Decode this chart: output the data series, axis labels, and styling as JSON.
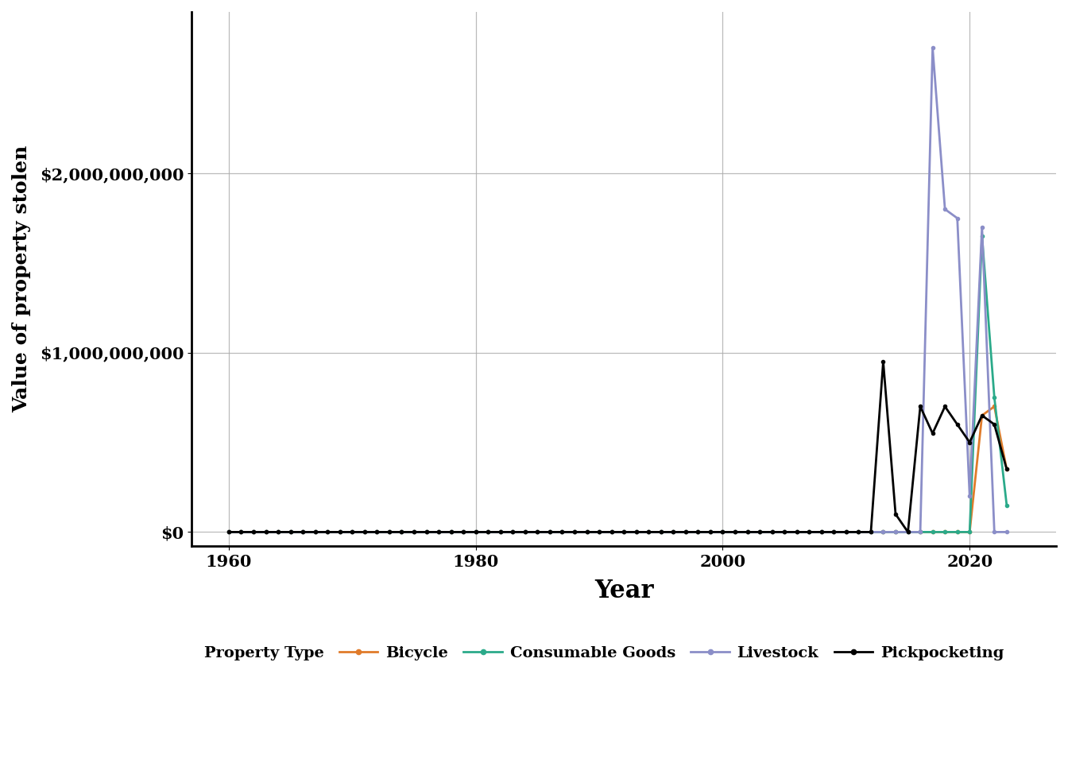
{
  "xlabel": "Year",
  "ylabel": "Value of property stolen",
  "xlim": [
    1957,
    2027
  ],
  "ylim": [
    -80000000,
    2900000000
  ],
  "yticks": [
    0,
    1000000000,
    2000000000
  ],
  "ytick_labels": [
    "$0",
    "$1,000,000,000",
    "$2,000,000,000"
  ],
  "xticks": [
    1960,
    1980,
    2000,
    2020
  ],
  "legend_title": "Property Type",
  "series": {
    "Bicycle": {
      "color": "#E07B2A",
      "years": [
        1960,
        1961,
        1962,
        1963,
        1964,
        1965,
        1966,
        1967,
        1968,
        1969,
        1970,
        1971,
        1972,
        1973,
        1974,
        1975,
        1976,
        1977,
        1978,
        1979,
        1980,
        1981,
        1982,
        1983,
        1984,
        1985,
        1986,
        1987,
        1988,
        1989,
        1990,
        1991,
        1992,
        1993,
        1994,
        1995,
        1996,
        1997,
        1998,
        1999,
        2000,
        2001,
        2002,
        2003,
        2004,
        2005,
        2006,
        2007,
        2008,
        2009,
        2010,
        2011,
        2012,
        2013,
        2014,
        2015,
        2016,
        2017,
        2018,
        2019,
        2020,
        2021,
        2022,
        2023
      ],
      "values": [
        0,
        0,
        0,
        0,
        0,
        0,
        0,
        0,
        0,
        0,
        0,
        0,
        0,
        0,
        0,
        0,
        0,
        0,
        0,
        0,
        0,
        0,
        0,
        0,
        0,
        0,
        0,
        0,
        0,
        0,
        0,
        0,
        0,
        0,
        0,
        0,
        0,
        0,
        0,
        0,
        0,
        0,
        0,
        0,
        0,
        0,
        0,
        0,
        0,
        0,
        0,
        0,
        0,
        0,
        0,
        0,
        0,
        0,
        0,
        0,
        0,
        650000000,
        700000000,
        350000000
      ]
    },
    "Consumable Goods": {
      "color": "#2BAA8A",
      "years": [
        1960,
        1961,
        1962,
        1963,
        1964,
        1965,
        1966,
        1967,
        1968,
        1969,
        1970,
        1971,
        1972,
        1973,
        1974,
        1975,
        1976,
        1977,
        1978,
        1979,
        1980,
        1981,
        1982,
        1983,
        1984,
        1985,
        1986,
        1987,
        1988,
        1989,
        1990,
        1991,
        1992,
        1993,
        1994,
        1995,
        1996,
        1997,
        1998,
        1999,
        2000,
        2001,
        2002,
        2003,
        2004,
        2005,
        2006,
        2007,
        2008,
        2009,
        2010,
        2011,
        2012,
        2013,
        2014,
        2015,
        2016,
        2017,
        2018,
        2019,
        2020,
        2021,
        2022,
        2023
      ],
      "values": [
        0,
        0,
        0,
        0,
        0,
        0,
        0,
        0,
        0,
        0,
        0,
        0,
        0,
        0,
        0,
        0,
        0,
        0,
        0,
        0,
        0,
        0,
        0,
        0,
        0,
        0,
        0,
        0,
        0,
        0,
        0,
        0,
        0,
        0,
        0,
        0,
        0,
        0,
        0,
        0,
        0,
        0,
        0,
        0,
        0,
        0,
        0,
        0,
        0,
        0,
        0,
        0,
        0,
        0,
        0,
        0,
        0,
        0,
        0,
        0,
        0,
        1650000000,
        750000000,
        150000000
      ]
    },
    "Livestock": {
      "color": "#8B8EC8",
      "years": [
        1960,
        1961,
        1962,
        1963,
        1964,
        1965,
        1966,
        1967,
        1968,
        1969,
        1970,
        1971,
        1972,
        1973,
        1974,
        1975,
        1976,
        1977,
        1978,
        1979,
        1980,
        1981,
        1982,
        1983,
        1984,
        1985,
        1986,
        1987,
        1988,
        1989,
        1990,
        1991,
        1992,
        1993,
        1994,
        1995,
        1996,
        1997,
        1998,
        1999,
        2000,
        2001,
        2002,
        2003,
        2004,
        2005,
        2006,
        2007,
        2008,
        2009,
        2010,
        2011,
        2012,
        2013,
        2014,
        2015,
        2016,
        2017,
        2018,
        2019,
        2020,
        2021,
        2022,
        2023
      ],
      "values": [
        0,
        0,
        0,
        0,
        0,
        0,
        0,
        0,
        0,
        0,
        0,
        0,
        0,
        0,
        0,
        0,
        0,
        0,
        0,
        0,
        0,
        0,
        0,
        0,
        0,
        0,
        0,
        0,
        0,
        0,
        0,
        0,
        0,
        0,
        0,
        0,
        0,
        0,
        0,
        0,
        0,
        0,
        0,
        0,
        0,
        0,
        0,
        0,
        0,
        0,
        0,
        0,
        0,
        0,
        0,
        0,
        0,
        2700000000,
        1800000000,
        1750000000,
        200000000,
        1700000000,
        0,
        0
      ]
    },
    "Pickpocketing": {
      "color": "#000000",
      "years": [
        1960,
        1961,
        1962,
        1963,
        1964,
        1965,
        1966,
        1967,
        1968,
        1969,
        1970,
        1971,
        1972,
        1973,
        1974,
        1975,
        1976,
        1977,
        1978,
        1979,
        1980,
        1981,
        1982,
        1983,
        1984,
        1985,
        1986,
        1987,
        1988,
        1989,
        1990,
        1991,
        1992,
        1993,
        1994,
        1995,
        1996,
        1997,
        1998,
        1999,
        2000,
        2001,
        2002,
        2003,
        2004,
        2005,
        2006,
        2007,
        2008,
        2009,
        2010,
        2011,
        2012,
        2013,
        2014,
        2015,
        2016,
        2017,
        2018,
        2019,
        2020,
        2021,
        2022,
        2023
      ],
      "values": [
        0,
        0,
        0,
        0,
        0,
        0,
        0,
        0,
        0,
        0,
        0,
        0,
        0,
        0,
        0,
        0,
        0,
        0,
        0,
        0,
        0,
        0,
        0,
        0,
        0,
        0,
        0,
        0,
        0,
        0,
        0,
        0,
        0,
        0,
        0,
        0,
        0,
        0,
        0,
        0,
        0,
        0,
        0,
        0,
        0,
        0,
        0,
        0,
        0,
        0,
        0,
        0,
        0,
        950000000,
        100000000,
        0,
        700000000,
        550000000,
        700000000,
        600000000,
        500000000,
        650000000,
        600000000,
        350000000
      ]
    }
  },
  "marker": "o",
  "markersize": 3,
  "linewidth": 2.0,
  "background_color": "#ffffff",
  "grid_color": "#aaaaaa",
  "font_family": "serif",
  "title_fontsize": 0,
  "xlabel_fontsize": 22,
  "ylabel_fontsize": 18,
  "tick_fontsize": 15,
  "legend_fontsize": 14,
  "legend_title_fontsize": 14
}
